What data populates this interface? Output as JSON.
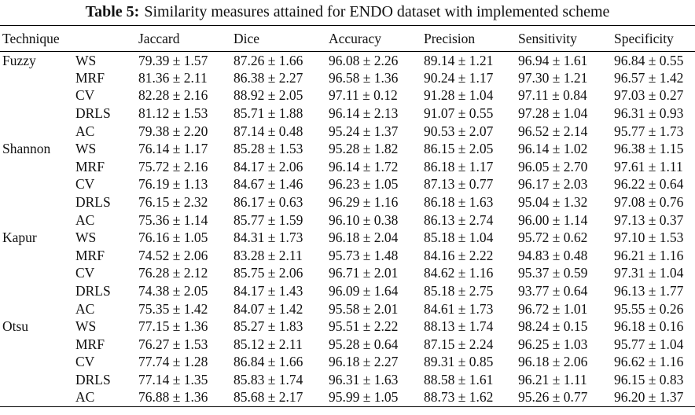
{
  "caption": {
    "label": "Table 5:",
    "text": "Similarity measures attained for ENDO dataset with implemented scheme"
  },
  "table": {
    "headers": [
      "Technique",
      "",
      "Jaccard",
      "Dice",
      "Accuracy",
      "Precision",
      "Sensitivity",
      "Specificity"
    ],
    "rows": [
      [
        "Fuzzy",
        "WS",
        "79.39 ± 1.57",
        "87.26 ± 1.66",
        "96.08 ± 2.26",
        "89.14 ± 1.21",
        "96.94 ± 1.61",
        "96.84 ± 0.55"
      ],
      [
        "",
        "MRF",
        "81.36 ± 2.11",
        "86.38 ± 2.27",
        "96.58 ± 1.36",
        "90.24 ± 1.17",
        "97.30 ± 1.21",
        "96.57 ± 1.42"
      ],
      [
        "",
        "CV",
        "82.28 ± 2.16",
        "88.92 ± 2.05",
        "97.11 ± 0.12",
        "91.28 ± 1.04",
        "97.11 ± 0.84",
        "97.03 ± 0.27"
      ],
      [
        "",
        "DRLS",
        "81.12 ± 1.53",
        "85.71 ± 1.88",
        "96.14 ± 2.13",
        "91.07 ± 0.55",
        "97.28 ± 1.04",
        "96.31 ± 0.93"
      ],
      [
        "",
        "AC",
        "79.38 ± 2.20",
        "87.14 ± 0.48",
        "95.24 ± 1.37",
        "90.53 ± 2.07",
        "96.52 ± 2.14",
        "95.77 ± 1.73"
      ],
      [
        "Shannon",
        "WS",
        "76.14 ± 1.17",
        "85.28 ± 1.53",
        "95.28 ± 1.82",
        "86.15 ± 2.05",
        "96.14 ± 1.02",
        "96.38 ± 1.15"
      ],
      [
        "",
        "MRF",
        "75.72 ± 2.16",
        "84.17 ± 2.06",
        "96.14 ± 1.72",
        "86.18 ± 1.17",
        "96.05 ± 2.70",
        "97.61 ± 1.11"
      ],
      [
        "",
        "CV",
        "76.19 ± 1.13",
        "84.67 ± 1.46",
        "96.23 ± 1.05",
        "87.13 ± 0.77",
        "96.17 ± 2.03",
        "96.22 ± 0.64"
      ],
      [
        "",
        "DRLS",
        "76.15 ± 2.32",
        "86.17 ± 0.63",
        "96.29 ± 1.16",
        "86.18 ± 1.63",
        "95.04 ± 1.32",
        "97.08 ± 0.76"
      ],
      [
        "",
        "AC",
        "75.36 ± 1.14",
        "85.77 ± 1.59",
        "96.10 ± 0.38",
        "86.13 ± 2.74",
        "96.00 ± 1.14",
        "97.13 ± 0.37"
      ],
      [
        "Kapur",
        "WS",
        "76.16 ± 1.05",
        "84.31 ± 1.73",
        "96.18 ± 2.04",
        "85.18 ± 1.04",
        "95.72 ± 0.62",
        "97.10 ± 1.53"
      ],
      [
        "",
        "MRF",
        "74.52 ± 2.06",
        "83.28 ± 2.11",
        "95.73 ± 1.48",
        "84.16 ± 2.22",
        "94.83 ± 0.48",
        "96.21 ± 1.16"
      ],
      [
        "",
        "CV",
        "76.28 ± 2.12",
        "85.75 ± 2.06",
        "96.71 ± 2.01",
        "84.62 ± 1.16",
        "95.37 ± 0.59",
        "97.31 ± 1.04"
      ],
      [
        "",
        "DRLS",
        "74.38 ± 2.05",
        "84.17 ± 1.43",
        "96.09 ± 1.64",
        "85.18 ± 2.75",
        "93.77 ± 0.64",
        "96.13 ± 1.77"
      ],
      [
        "",
        "AC",
        "75.35 ± 1.42",
        "84.07 ± 1.42",
        "95.58 ± 2.01",
        "84.61 ± 1.73",
        "96.72 ± 1.01",
        "95.55 ± 0.26"
      ],
      [
        "Otsu",
        "WS",
        "77.15 ± 1.36",
        "85.27 ± 1.83",
        "95.51 ± 2.22",
        "88.13 ± 1.74",
        "98.24 ± 0.15",
        "96.18 ± 0.16"
      ],
      [
        "",
        "MRF",
        "76.27 ± 1.53",
        "85.12 ± 2.11",
        "95.28 ± 0.64",
        "87.15 ± 2.24",
        "96.25 ± 1.03",
        "95.77 ± 1.04"
      ],
      [
        "",
        "CV",
        "77.74 ± 1.28",
        "86.84 ± 1.66",
        "96.18 ± 2.27",
        "89.31 ± 0.85",
        "96.18 ± 2.06",
        "96.62 ± 1.16"
      ],
      [
        "",
        "DRLS",
        "77.14 ± 1.35",
        "85.83 ± 1.74",
        "96.31 ± 1.63",
        "88.58 ± 1.61",
        "96.21 ± 1.11",
        "96.15 ± 0.83"
      ],
      [
        "",
        "AC",
        "76.88 ± 1.36",
        "85.68 ± 2.17",
        "95.99 ± 1.05",
        "88.73 ± 1.62",
        "95.26 ± 0.77",
        "96.20 ± 1.37"
      ]
    ]
  }
}
